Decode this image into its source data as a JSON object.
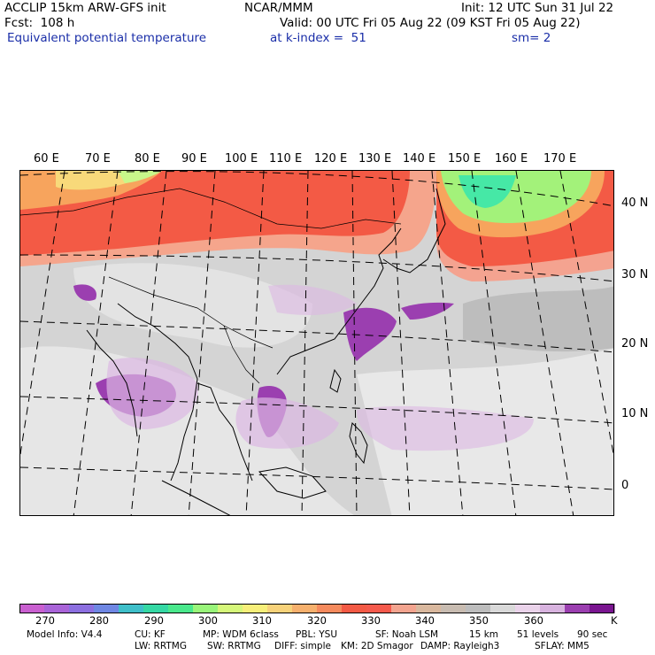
{
  "header": {
    "model_line": "ACCLIP 15km ARW-GFS init",
    "org": "NCAR/MMM",
    "init": "Init: 12 UTC Sun 31 Jul 22",
    "fcst": "Fcst:  108 h",
    "valid": "Valid: 00 UTC Fri 05 Aug 22 (09 KST Fri 05 Aug 22)",
    "field_name": "Equivalent potential temperature",
    "level": "at k-index =  51",
    "smoothing": "sm= 2"
  },
  "map": {
    "lon_labels": [
      "60 E",
      "70 E",
      "80 E",
      "90 E",
      "100 E",
      "110 E",
      "120 E",
      "130 E",
      "140 E",
      "150 E",
      "160 E",
      "170 E"
    ],
    "lat_labels": [
      "40 N",
      "30 N",
      "20 N",
      "10 N",
      "0"
    ]
  },
  "colorbar": {
    "colors": [
      "#c95fd0",
      "#a964d8",
      "#8c6fe0",
      "#6f87e3",
      "#3fbfc9",
      "#35d8a4",
      "#4ae88c",
      "#99f57a",
      "#d6f77a",
      "#f7ef7a",
      "#f7d27a",
      "#f6b06d",
      "#f58a5d",
      "#f35a45",
      "#f55a4c",
      "#f3a48f",
      "#d9b89e",
      "#c8bcb1",
      "#bdbdbd",
      "#d9d9d9",
      "#ead3ea",
      "#d8b3df",
      "#9b3fb0",
      "#7a1590"
    ],
    "labels": [
      "270",
      "280",
      "290",
      "300",
      "310",
      "320",
      "330",
      "340",
      "350",
      "360"
    ],
    "unit": "K"
  },
  "footer": {
    "line1": [
      "Model Info: V4.4",
      "CU: KF",
      "MP: WDM 6class",
      "PBL: YSU",
      "SF: Noah LSM",
      "15 km",
      "51 levels",
      "90 sec"
    ],
    "line2": [
      "LW: RRTMG",
      "SW: RRTMG",
      "DIFF: simple",
      "KM: 2D Smagor",
      "DAMP: Rayleigh3",
      "SFLAY: MM5"
    ]
  }
}
